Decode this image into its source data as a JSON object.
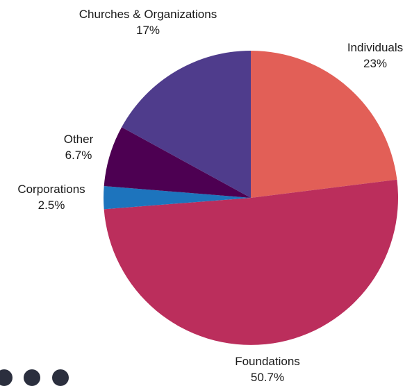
{
  "chart_data": {
    "type": "pie",
    "slices": [
      {
        "label": "Individuals",
        "value": 23,
        "value_label": "23%",
        "color": "#e25f57"
      },
      {
        "label": "Foundations",
        "value": 50.7,
        "value_label": "50.7%",
        "color": "#bb2e5c"
      },
      {
        "label": "Corporations",
        "value": 2.5,
        "value_label": "2.5%",
        "color": "#1d74bd"
      },
      {
        "label": "Other",
        "value": 6.7,
        "value_label": "6.7%",
        "color": "#4d0052"
      },
      {
        "label": "Churches & Organizations",
        "value": 17,
        "value_label": "17%",
        "color": "#4f3c8c"
      }
    ],
    "start_angle": "12 o'clock",
    "direction": "clockwise"
  },
  "decor": {
    "dot_color": "#2b2f3e"
  }
}
